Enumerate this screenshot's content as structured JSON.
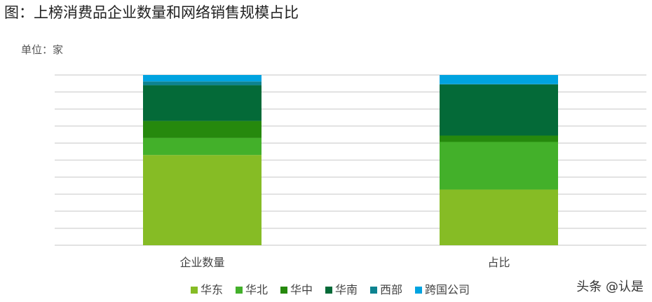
{
  "chart_data": {
    "type": "bar",
    "stacked": "percent",
    "title": "图：上榜消费品企业数量和网络销售规模占比",
    "ylabel": "单位：家",
    "categories": [
      "企业数量",
      "占比"
    ],
    "ylim": [
      0,
      100
    ],
    "grid": true,
    "legend_position": "bottom",
    "series": [
      {
        "name": "华东",
        "color": "#86bc25",
        "values": [
          53,
          32.7
        ]
      },
      {
        "name": "华北",
        "color": "#43b02a",
        "values": [
          10,
          28
        ]
      },
      {
        "name": "华中",
        "color": "#26890d",
        "values": [
          10,
          3.7
        ]
      },
      {
        "name": "华南",
        "color": "#046a38",
        "values": [
          21,
          30
        ]
      },
      {
        "name": "西部",
        "color": "#0d8390",
        "values": [
          2.2,
          0.3
        ]
      },
      {
        "name": "跨国公司",
        "color": "#00a3e0",
        "values": [
          3.8,
          5.3
        ]
      }
    ]
  },
  "watermark": "头条 @认是"
}
